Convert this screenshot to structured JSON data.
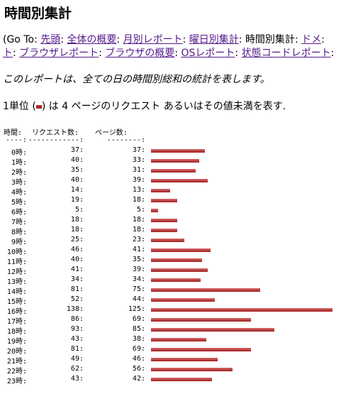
{
  "title": "時間別集計",
  "nav": {
    "prefix": "(Go To",
    "items": [
      {
        "text": "先頭",
        "link": true
      },
      {
        "text": "全体の概要",
        "link": true
      },
      {
        "text": "月別レポート",
        "link": true
      },
      {
        "text": "曜日別集計",
        "link": true
      },
      {
        "text": "時間別集計",
        "link": false
      },
      {
        "text": "ドメ",
        "link": true
      },
      {
        "text": "ト",
        "link": true
      },
      {
        "text": "ブラウザレポート",
        "link": true
      },
      {
        "text": "ブラウザの概要",
        "link": true
      },
      {
        "text": "OSレポート",
        "link": true
      },
      {
        "text": "状態コードレポート",
        "link": true
      }
    ]
  },
  "description": "このレポートは、全ての日の時間別総和の統計を表します。",
  "unit_note": {
    "before": "1単位 (",
    "after": ") は 4 ページのリクエスト あるいはその値未満を表す."
  },
  "table": {
    "headers": [
      "時間",
      "リクエスト数",
      "ページ数"
    ],
    "dashes": [
      "----",
      "------------",
      "--------"
    ],
    "rows": [
      [
        "0時",
        37,
        37
      ],
      [
        "1時",
        40,
        33
      ],
      [
        "2時",
        35,
        31
      ],
      [
        "3時",
        40,
        39
      ],
      [
        "4時",
        14,
        13
      ],
      [
        "5時",
        19,
        18
      ],
      [
        "6時",
        5,
        5
      ],
      [
        "7時",
        18,
        18
      ],
      [
        "8時",
        18,
        18
      ],
      [
        "9時",
        25,
        23
      ],
      [
        "10時",
        46,
        41
      ],
      [
        "11時",
        40,
        35
      ],
      [
        "12時",
        41,
        39
      ],
      [
        "13時",
        34,
        34
      ],
      [
        "14時",
        81,
        75
      ],
      [
        "15時",
        52,
        44
      ],
      [
        "16時",
        138,
        125
      ],
      [
        "17時",
        86,
        69
      ],
      [
        "18時",
        93,
        85
      ],
      [
        "19時",
        43,
        38
      ],
      [
        "20時",
        81,
        69
      ],
      [
        "21時",
        49,
        46
      ],
      [
        "22時",
        62,
        56
      ],
      [
        "23時",
        43,
        42
      ]
    ]
  }
}
